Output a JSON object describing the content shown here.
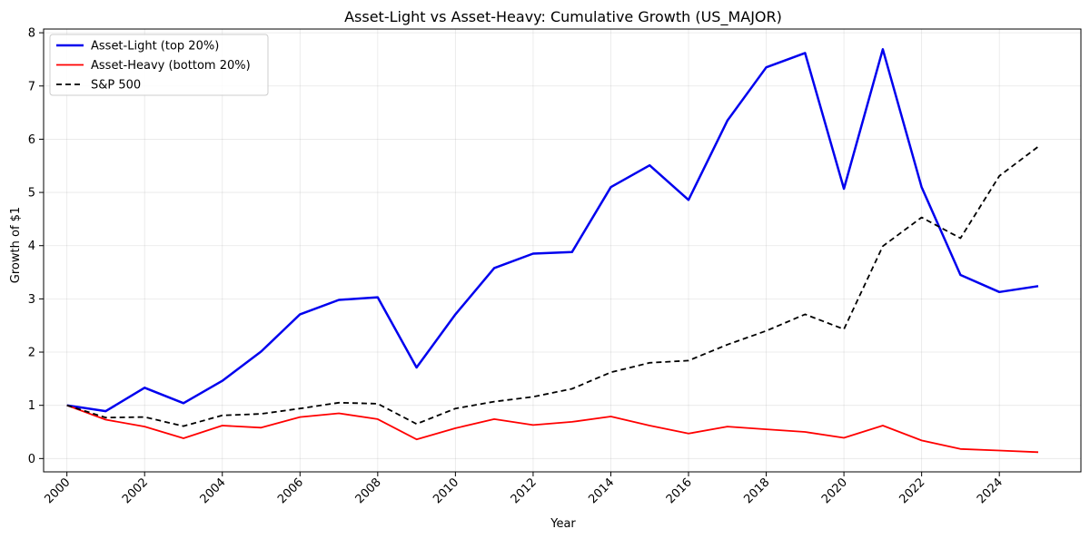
{
  "chart_data": {
    "type": "line",
    "title": "Asset-Light vs Asset-Heavy: Cumulative Growth (US_MAJOR)",
    "xlabel": "Year",
    "ylabel": "Growth of $1",
    "x": [
      2000,
      2001,
      2002,
      2003,
      2004,
      2005,
      2006,
      2007,
      2008,
      2009,
      2010,
      2011,
      2012,
      2013,
      2014,
      2015,
      2016,
      2017,
      2018,
      2019,
      2020,
      2021,
      2022,
      2023,
      2024,
      2025
    ],
    "xticks": [
      "2000",
      "2002",
      "2004",
      "2006",
      "2008",
      "2010",
      "2012",
      "2014",
      "2016",
      "2018",
      "2020",
      "2022",
      "2024"
    ],
    "yticks": [
      "0",
      "1",
      "2",
      "3",
      "4",
      "5",
      "6",
      "7",
      "8"
    ],
    "xlim": [
      1999.4,
      2026.1
    ],
    "ylim": [
      -0.25,
      8.07
    ],
    "grid": true,
    "legend_position": "top-left",
    "series": [
      {
        "name": "Asset-Light (top 20%)",
        "color": "#0000ee",
        "style": "solid",
        "values": [
          1.0,
          0.89,
          1.33,
          1.04,
          1.46,
          2.01,
          2.71,
          2.98,
          3.03,
          1.71,
          2.71,
          3.58,
          3.85,
          3.88,
          5.1,
          5.51,
          4.86,
          6.35,
          7.35,
          7.62,
          5.07,
          7.69,
          5.1,
          3.45,
          3.13,
          3.24
        ]
      },
      {
        "name": "Asset-Heavy (bottom 20%)",
        "color": "#ff0000",
        "style": "solid",
        "values": [
          1.0,
          0.73,
          0.6,
          0.38,
          0.62,
          0.58,
          0.78,
          0.85,
          0.74,
          0.36,
          0.57,
          0.74,
          0.63,
          0.69,
          0.79,
          0.62,
          0.47,
          0.6,
          0.55,
          0.5,
          0.39,
          0.62,
          0.34,
          0.18,
          0.15,
          0.12
        ]
      },
      {
        "name": "S&P 500",
        "color": "#000000",
        "style": "dashed",
        "values": [
          1.0,
          0.77,
          0.78,
          0.61,
          0.81,
          0.84,
          0.94,
          1.05,
          1.03,
          0.65,
          0.94,
          1.07,
          1.16,
          1.31,
          1.62,
          1.8,
          1.84,
          2.14,
          2.4,
          2.71,
          2.43,
          3.99,
          4.53,
          4.14,
          5.31,
          5.86
        ]
      }
    ]
  }
}
